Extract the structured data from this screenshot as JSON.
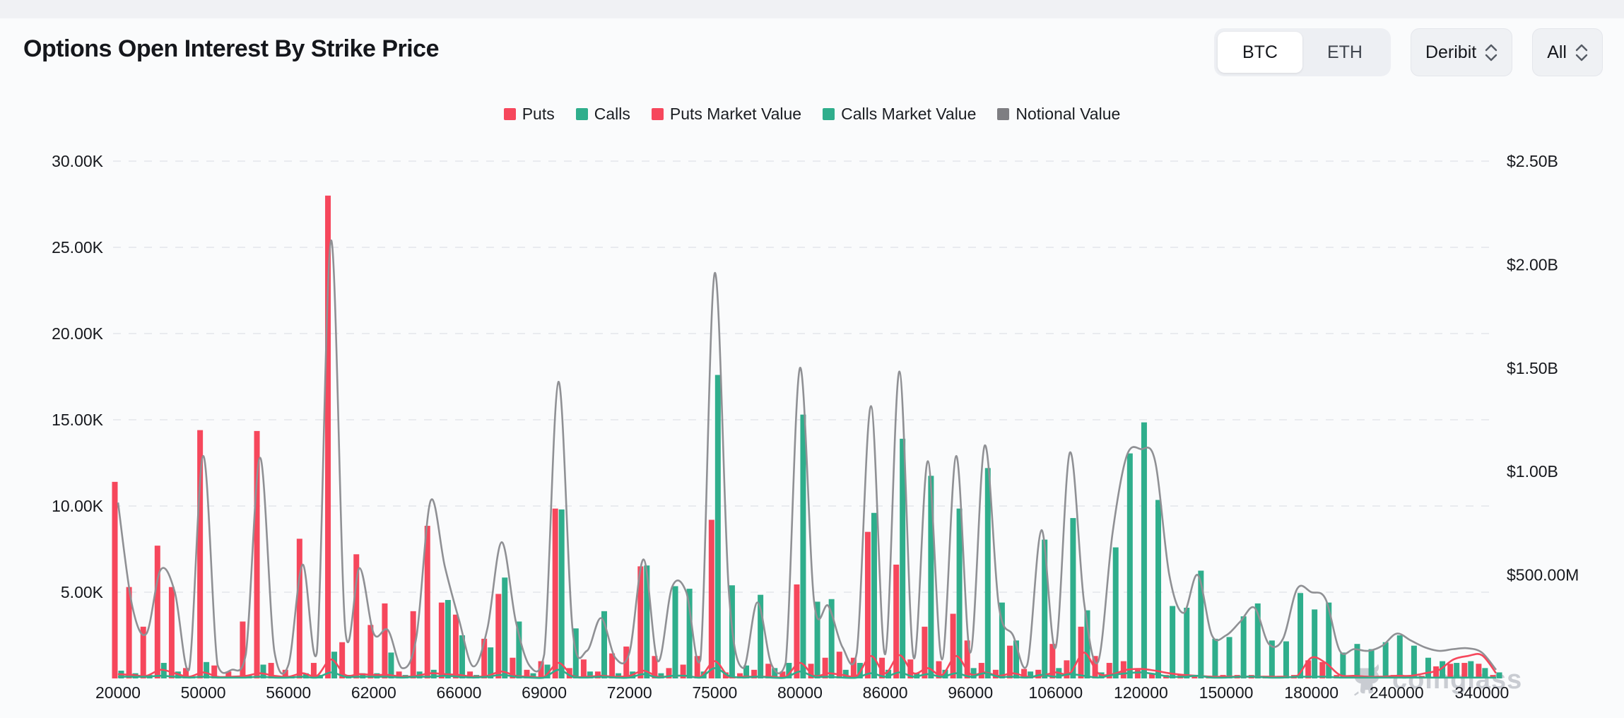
{
  "header": {
    "title": "Options Open Interest By Strike Price",
    "asset_toggle": {
      "options": [
        "BTC",
        "ETH"
      ],
      "selected": "BTC"
    },
    "exchange_select": {
      "value": "Deribit"
    },
    "expiry_select": {
      "value": "All"
    }
  },
  "legend": {
    "items": [
      {
        "label": "Puts",
        "color": "#F6475C"
      },
      {
        "label": "Calls",
        "color": "#2FAE8C"
      },
      {
        "label": "Puts Market Value",
        "color": "#F6475C"
      },
      {
        "label": "Calls Market Value",
        "color": "#2FAE8C"
      },
      {
        "label": "Notional Value",
        "color": "#7E7E82"
      }
    ]
  },
  "watermark": {
    "text": "coinglass"
  },
  "colors": {
    "puts": "#F6475C",
    "calls": "#2FAE8C",
    "notional": "#8F9094",
    "grid": "#E9EBEF",
    "axis_text": "#16181D"
  },
  "chart_data": {
    "type": "bar",
    "subtype": "dual-axis bars with smooth lines",
    "title": "Options Open Interest By Strike Price",
    "left_axis": {
      "tick_labels": [
        "30.00K",
        "25.00K",
        "20.00K",
        "15.00K",
        "10.00K",
        "5.00K"
      ],
      "tick_k": [
        30,
        25,
        20,
        15,
        10,
        5
      ],
      "max_k": 30,
      "unit": "contracts (thousands)"
    },
    "right_axis": {
      "tick_labels": [
        "$2.50B",
        "$2.00B",
        "$1.50B",
        "$1.00B",
        "$500.00M"
      ],
      "tick_k_equiv": [
        30,
        24,
        18,
        12,
        6
      ],
      "max_usd": "2.50B"
    },
    "x_labels": [
      "20000",
      "50000",
      "56000",
      "62000",
      "66000",
      "69000",
      "72000",
      "75000",
      "80000",
      "86000",
      "96000",
      "106000",
      "120000",
      "150000",
      "180000",
      "240000",
      "340000"
    ],
    "label_every": 6,
    "n_slots": 98,
    "grid": "horizontal dashed",
    "legend_position": "top center",
    "series": [
      {
        "name": "Puts",
        "type": "bar",
        "axis": "left",
        "values_k": [
          11.4,
          5.3,
          3.0,
          7.7,
          5.3,
          0.6,
          14.4,
          0.75,
          0.4,
          3.3,
          14.35,
          0.9,
          0.5,
          8.1,
          0.9,
          28.0,
          2.1,
          7.2,
          3.1,
          4.35,
          0.4,
          3.9,
          8.85,
          4.4,
          3.7,
          0.4,
          2.3,
          4.9,
          1.2,
          0.5,
          1.0,
          9.85,
          0.6,
          1.1,
          0.4,
          1.45,
          1.85,
          6.5,
          1.3,
          0.6,
          0.8,
          1.3,
          9.2,
          0.35,
          0.3,
          0.5,
          0.85,
          0.4,
          5.45,
          0.85,
          1.2,
          1.55,
          1.2,
          8.5,
          1.2,
          6.6,
          1.1,
          3.0,
          1.0,
          3.75,
          2.2,
          0.9,
          0.5,
          1.9,
          0.55,
          0.5,
          2.0,
          1.05,
          3.0,
          1.3,
          0.9,
          1.0,
          0.5,
          0.3,
          0.2,
          0.2,
          0.15,
          0.15,
          0.2,
          0.2,
          0.2,
          0.15,
          0.15,
          0.2,
          1.05,
          0.95,
          0.2,
          0.15,
          0.15,
          0.15,
          0.2,
          0.15,
          0.15,
          0.7,
          0.85,
          0.9,
          0.85,
          0.2
        ]
      },
      {
        "name": "Calls",
        "type": "bar",
        "axis": "left",
        "values_k": [
          0.45,
          0.3,
          0.2,
          0.9,
          0.4,
          0.1,
          0.95,
          0.1,
          0.1,
          0.2,
          0.8,
          0.15,
          0.1,
          0.3,
          0.2,
          1.55,
          0.2,
          0.3,
          0.3,
          1.5,
          0.2,
          0.4,
          0.5,
          4.55,
          2.5,
          0.2,
          1.8,
          5.85,
          3.3,
          0.3,
          0.8,
          9.8,
          2.9,
          0.4,
          3.9,
          0.3,
          0.4,
          6.55,
          0.3,
          5.35,
          5.2,
          0.4,
          17.6,
          5.4,
          0.75,
          4.85,
          0.6,
          0.9,
          15.3,
          4.45,
          4.6,
          0.5,
          0.9,
          9.6,
          0.5,
          13.9,
          0.3,
          11.75,
          0.5,
          9.85,
          0.6,
          12.2,
          4.4,
          2.2,
          0.4,
          8.05,
          0.6,
          9.3,
          3.95,
          0.35,
          7.6,
          13.05,
          14.85,
          10.35,
          4.2,
          4.1,
          6.25,
          2.3,
          2.4,
          3.6,
          4.35,
          2.2,
          2.15,
          4.95,
          4.0,
          4.4,
          1.5,
          2.0,
          1.7,
          2.1,
          2.5,
          1.9,
          1.2,
          1.0,
          0.9,
          1.0,
          0.6,
          0.35
        ]
      },
      {
        "name": "Notional Value",
        "type": "line",
        "axis": "right",
        "values_k_equiv": [
          10.2,
          4.2,
          2.6,
          6.3,
          5.0,
          0.5,
          12.9,
          0.8,
          0.5,
          1.4,
          12.8,
          1.6,
          0.8,
          6.6,
          1.5,
          25.4,
          2.8,
          6.4,
          2.6,
          2.8,
          0.6,
          2.4,
          10.3,
          6.5,
          3.4,
          0.7,
          2.9,
          7.9,
          3.3,
          0.7,
          1.4,
          17.2,
          2.8,
          1.6,
          3.5,
          1.2,
          1.5,
          6.9,
          1.0,
          5.3,
          5.0,
          1.1,
          23.5,
          5.0,
          0.6,
          4.4,
          0.8,
          0.9,
          18.0,
          4.4,
          4.2,
          1.8,
          1.5,
          15.8,
          1.4,
          17.8,
          1.2,
          12.6,
          1.1,
          12.9,
          1.5,
          13.5,
          4.2,
          2.5,
          0.8,
          8.6,
          1.8,
          13.1,
          4.4,
          1.0,
          8.4,
          12.9,
          13.3,
          12.6,
          6.0,
          3.8,
          6.0,
          2.5,
          2.5,
          3.3,
          4.1,
          2.0,
          2.3,
          5.2,
          5.0,
          4.6,
          1.6,
          1.7,
          1.6,
          1.9,
          2.6,
          2.2,
          1.8,
          1.6,
          1.7,
          1.75,
          1.5,
          0.5
        ]
      },
      {
        "name": "Puts Market Value",
        "type": "line",
        "axis": "right",
        "values_k_equiv": [
          0.25,
          0.2,
          0.15,
          0.5,
          0.3,
          0.1,
          0.35,
          0.1,
          0.1,
          0.15,
          0.3,
          0.15,
          0.1,
          0.3,
          0.15,
          1.1,
          0.2,
          0.25,
          0.2,
          0.2,
          0.1,
          0.15,
          0.3,
          0.25,
          0.2,
          0.1,
          0.15,
          0.4,
          0.15,
          0.1,
          0.1,
          0.9,
          0.15,
          0.1,
          0.15,
          0.1,
          0.15,
          0.45,
          0.1,
          0.15,
          0.15,
          0.1,
          1.0,
          0.1,
          0.1,
          0.1,
          0.1,
          0.1,
          0.9,
          0.15,
          0.3,
          0.2,
          0.15,
          1.3,
          0.3,
          1.35,
          0.3,
          0.6,
          0.2,
          1.3,
          0.25,
          0.35,
          0.15,
          0.3,
          0.1,
          0.15,
          0.35,
          0.3,
          1.5,
          0.3,
          0.25,
          0.5,
          0.55,
          0.45,
          0.3,
          0.2,
          0.15,
          0.1,
          0.1,
          0.1,
          0.1,
          0.1,
          0.1,
          0.15,
          1.2,
          0.9,
          0.2,
          0.15,
          0.1,
          0.1,
          0.15,
          0.15,
          0.3,
          0.5,
          1.1,
          1.3,
          1.35,
          0.3
        ]
      },
      {
        "name": "Calls Market Value",
        "type": "line",
        "axis": "right",
        "values_k_equiv": [
          0.1,
          0.1,
          0.1,
          0.15,
          0.1,
          0.05,
          0.1,
          0.05,
          0.05,
          0.05,
          0.1,
          0.05,
          0.05,
          0.1,
          0.05,
          0.35,
          0.1,
          0.1,
          0.1,
          0.1,
          0.05,
          0.1,
          0.1,
          0.15,
          0.1,
          0.05,
          0.1,
          0.2,
          0.1,
          0.05,
          0.05,
          0.5,
          0.1,
          0.05,
          0.1,
          0.05,
          0.05,
          0.25,
          0.05,
          0.15,
          0.15,
          0.05,
          0.6,
          0.15,
          0.05,
          0.1,
          0.05,
          0.05,
          0.4,
          0.1,
          0.1,
          0.05,
          0.05,
          0.3,
          0.1,
          0.35,
          0.1,
          0.25,
          0.1,
          0.3,
          0.1,
          0.3,
          0.1,
          0.1,
          0.05,
          0.2,
          0.1,
          0.25,
          0.15,
          0.05,
          0.2,
          0.3,
          0.35,
          0.25,
          0.1,
          0.1,
          0.15,
          0.05,
          0.05,
          0.1,
          0.1,
          0.05,
          0.05,
          0.1,
          0.1,
          0.1,
          0.05,
          0.05,
          0.05,
          0.05,
          0.05,
          0.05,
          0.05,
          0.05,
          0.05,
          0.05,
          0.05,
          0.05
        ]
      }
    ]
  }
}
